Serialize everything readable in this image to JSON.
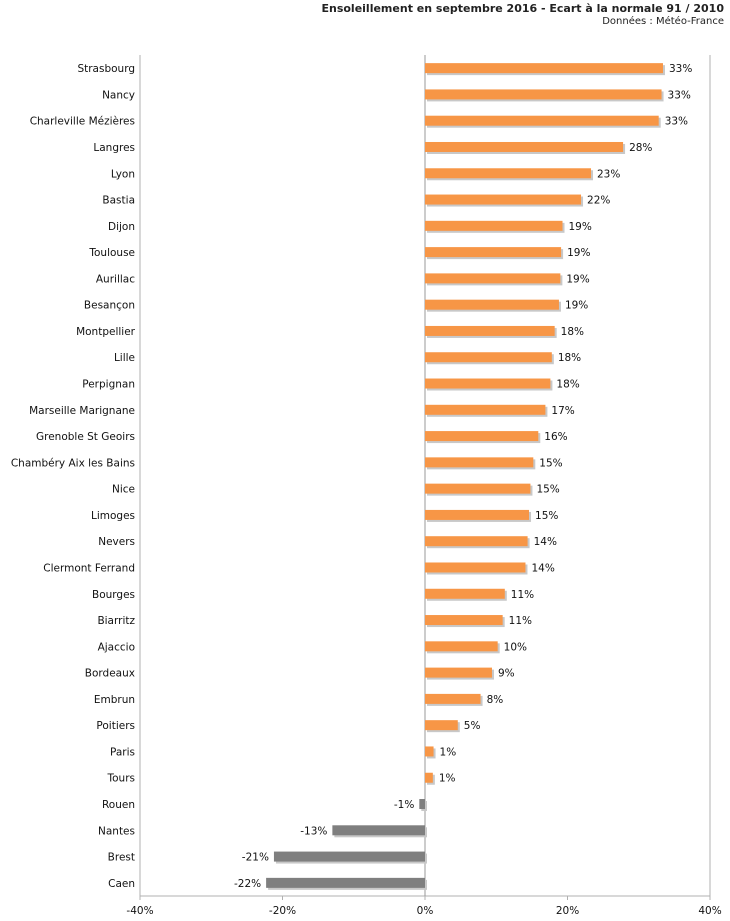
{
  "title": "Ensoleillement en septembre 2016 - Ecart à la normale 91 / 2010",
  "subtitle": "Données : Météo-France",
  "colors": {
    "positive": "#f79646",
    "negative": "#7f7f7f",
    "shadow": "#c8c8c8",
    "grid": "#b0b0b0"
  },
  "chart_data": {
    "type": "bar",
    "orientation": "horizontal",
    "title": "Ensoleillement en septembre 2016 - Ecart à la normale 91 / 2010",
    "subtitle": "Données : Météo-France",
    "categories": [
      "Strasbourg",
      "Nancy",
      "Charleville Mézières",
      "Langres",
      "Lyon",
      "Bastia",
      "Dijon",
      "Toulouse",
      "Aurillac",
      "Besançon",
      "Montpellier",
      "Lille",
      "Perpignan",
      "Marseille Marignane",
      "Grenoble St Geoirs",
      "Chambéry Aix les Bains",
      "Nice",
      "Limoges",
      "Nevers",
      "Clermont Ferrand",
      "Bourges",
      "Biarritz",
      "Ajaccio",
      "Bordeaux",
      "Embrun",
      "Poitiers",
      "Paris",
      "Tours",
      "Rouen",
      "Nantes",
      "Brest",
      "Caen"
    ],
    "values": [
      33.4,
      33.2,
      32.8,
      27.8,
      23.3,
      21.9,
      19.3,
      19.1,
      19.0,
      18.8,
      18.2,
      17.8,
      17.6,
      16.9,
      15.9,
      15.2,
      14.8,
      14.6,
      14.4,
      14.1,
      11.2,
      10.9,
      10.2,
      9.4,
      7.8,
      4.6,
      1.2,
      1.1,
      -0.8,
      -13.0,
      -21.2,
      -22.3
    ],
    "labels": [
      "33%",
      "33%",
      "33%",
      "28%",
      "23%",
      "22%",
      "19%",
      "19%",
      "19%",
      "19%",
      "18%",
      "18%",
      "18%",
      "17%",
      "16%",
      "15%",
      "15%",
      "15%",
      "14%",
      "14%",
      "11%",
      "11%",
      "10%",
      "9%",
      "8%",
      "5%",
      "1%",
      "1%",
      "-1%",
      "-13%",
      "-21%",
      "-22%"
    ],
    "xlim": [
      -40,
      40
    ],
    "xticks": [
      -40,
      -20,
      0,
      20,
      40
    ],
    "xtick_labels": [
      "-40%",
      "-20%",
      "0%",
      "20%",
      "40%"
    ],
    "grid": true
  }
}
